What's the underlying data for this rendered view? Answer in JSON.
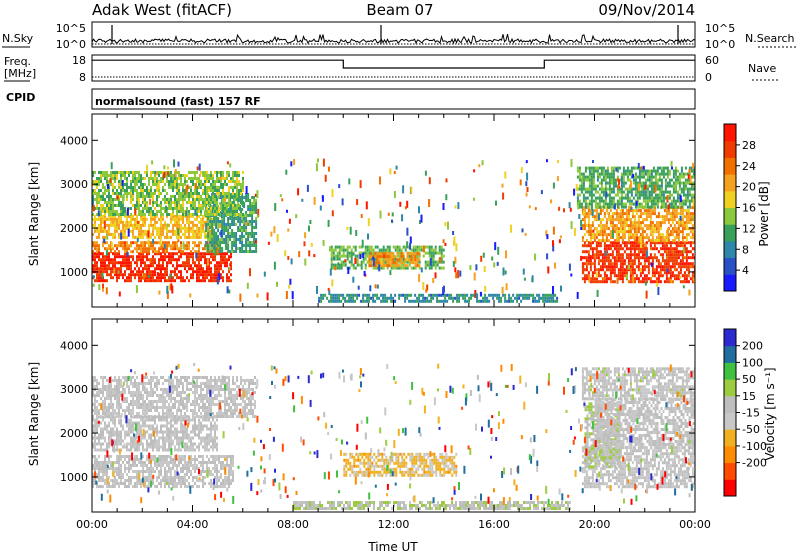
{
  "header": {
    "station": "Adak West (fitACF)",
    "beam": "Beam 07",
    "date": "09/Nov/2014"
  },
  "panel_labels": {
    "nsky": "N.Sky",
    "nsearch": "N.Search",
    "freq_top": "Freq.",
    "freq_unit": "[MHz]",
    "nave": "Nave",
    "cpid": "CPID",
    "cpid_text": "normalsound (fast) 157 RF",
    "nsky_max": "10^5",
    "nsky_min": "10^0",
    "nsearch_max": "10^5",
    "nsearch_min": "10^0",
    "freq_max": "18",
    "freq_min": "8",
    "nave_max": "60",
    "nave_min": "0"
  },
  "colors": {
    "power": [
      "#1a1aff",
      "#2a50c8",
      "#2e86a8",
      "#39a05a",
      "#8cc83c",
      "#f0d020",
      "#f5a01e",
      "#f07000",
      "#f03c00",
      "#ff1400"
    ],
    "velocity": [
      "#ff0000",
      "#ff4a00",
      "#ff8c00",
      "#f0b020",
      "#c8c8c8",
      "#bebebe",
      "#9ccc40",
      "#40c040",
      "#206ea0",
      "#2a2ad0"
    ]
  },
  "chart_data": [
    {
      "type": "heatmap",
      "name": "power",
      "xlabel": "",
      "ylabel": "Slant Range [km]",
      "xlim": [
        0,
        24
      ],
      "ylim": [
        200,
        4600
      ],
      "yticks": [
        "1000",
        "2000",
        "3000",
        "4000"
      ],
      "colorbar": {
        "label": "Power [dB]",
        "ticks": [
          "4",
          "8",
          "12",
          "16",
          "20",
          "24",
          "28"
        ],
        "range": [
          0,
          32
        ]
      },
      "regions": [
        {
          "x0": 0.0,
          "x1": 5.5,
          "y0": 800,
          "y1": 1450,
          "value": 29
        },
        {
          "x0": 0.0,
          "x1": 5.0,
          "y0": 1450,
          "y1": 1700,
          "value": 23
        },
        {
          "x0": 0.0,
          "x1": 4.8,
          "y0": 1800,
          "y1": 2300,
          "value": 19
        },
        {
          "x0": 4.5,
          "x1": 6.5,
          "y0": 1500,
          "y1": 2800,
          "value": 11
        },
        {
          "x0": 0.0,
          "x1": 6.0,
          "y0": 2300,
          "y1": 3300,
          "value": 14
        },
        {
          "x0": 9.5,
          "x1": 14.0,
          "y0": 1100,
          "y1": 1600,
          "value": 13
        },
        {
          "x0": 11.0,
          "x1": 13.0,
          "y0": 1150,
          "y1": 1450,
          "value": 22
        },
        {
          "x0": 9.0,
          "x1": 18.5,
          "y0": 320,
          "y1": 500,
          "value": 9
        },
        {
          "x0": 19.5,
          "x1": 24.0,
          "y0": 800,
          "y1": 1700,
          "value": 28
        },
        {
          "x0": 19.5,
          "x1": 24.0,
          "y0": 1700,
          "y1": 2500,
          "value": 21
        },
        {
          "x0": 19.3,
          "x1": 24.0,
          "y0": 2500,
          "y1": 3400,
          "value": 12
        }
      ]
    },
    {
      "type": "heatmap",
      "name": "velocity",
      "xlabel": "Time UT",
      "ylabel": "Slant Range [km]",
      "xlim": [
        0,
        24
      ],
      "ylim": [
        200,
        4600
      ],
      "xticks": [
        "00:00",
        "04:00",
        "08:00",
        "12:00",
        "16:00",
        "20:00",
        "00:00"
      ],
      "yticks": [
        "1000",
        "2000",
        "3000",
        "4000"
      ],
      "colorbar": {
        "label": "Velocity [m s⁻¹]",
        "ticks": [
          "200",
          "100",
          "50",
          "15",
          "-15",
          "-50",
          "-100",
          "-200"
        ],
        "range": [
          -250,
          250
        ]
      },
      "regions": [
        {
          "x0": 0.0,
          "x1": 5.6,
          "y0": 800,
          "y1": 1500,
          "value": 0
        },
        {
          "x0": 0.0,
          "x1": 5.0,
          "y0": 1600,
          "y1": 2400,
          "value": 5
        },
        {
          "x0": 0.0,
          "x1": 6.5,
          "y0": 2400,
          "y1": 3300,
          "value": -5
        },
        {
          "x0": 10.0,
          "x1": 14.5,
          "y0": 1050,
          "y1": 1550,
          "value": -60
        },
        {
          "x0": 8.0,
          "x1": 19.0,
          "y0": 250,
          "y1": 450,
          "value": 30
        },
        {
          "x0": 19.5,
          "x1": 24.0,
          "y0": 800,
          "y1": 1700,
          "value": 5
        },
        {
          "x0": 19.6,
          "x1": 21.0,
          "y0": 1200,
          "y1": 2700,
          "value": 40
        },
        {
          "x0": 20.0,
          "x1": 24.0,
          "y0": 1700,
          "y1": 2800,
          "value": 0
        },
        {
          "x0": 19.5,
          "x1": 24.0,
          "y0": 2800,
          "y1": 3500,
          "value": 10
        }
      ]
    },
    {
      "type": "line",
      "name": "freq",
      "ylim": [
        8,
        18
      ],
      "series": [
        {
          "values": [
            [
              0,
              16
            ],
            [
              10,
              16
            ],
            [
              10,
              13
            ],
            [
              18,
              13
            ],
            [
              18,
              16
            ],
            [
              24,
              16
            ]
          ]
        }
      ]
    }
  ]
}
